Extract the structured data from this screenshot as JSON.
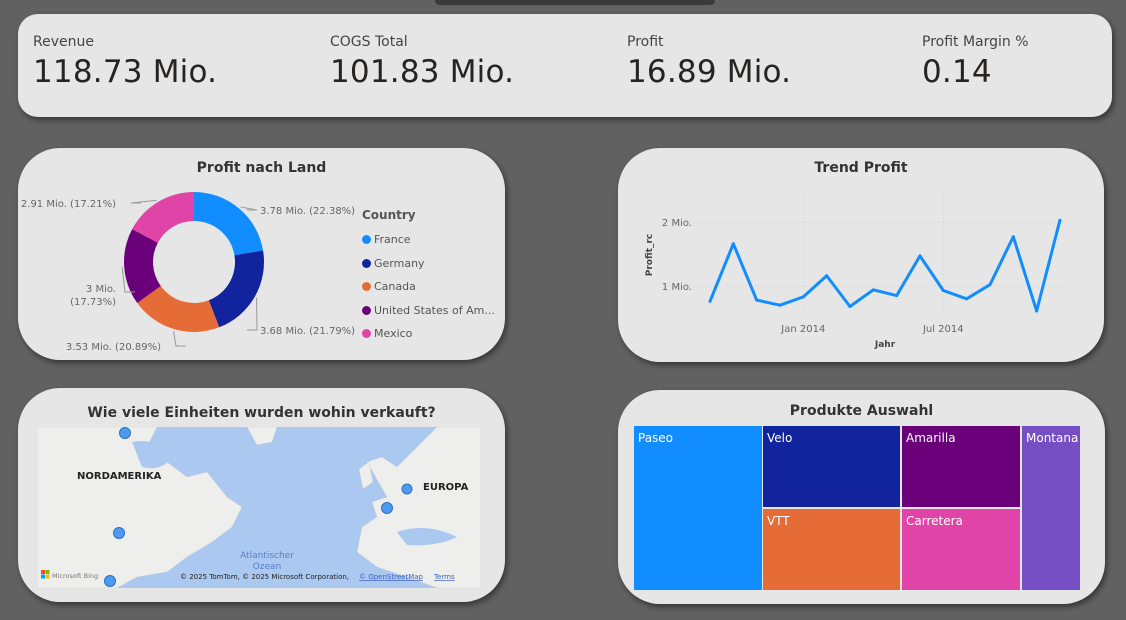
{
  "kpis": [
    {
      "label": "Revenue",
      "value": "118.73 Mio."
    },
    {
      "label": "COGS Total",
      "value": "101.83 Mio."
    },
    {
      "label": "Profit",
      "value": "16.89 Mio."
    },
    {
      "label": "Profit Margin %",
      "value": "0.14"
    }
  ],
  "chart_data": [
    {
      "type": "pie",
      "variant": "donut",
      "title": "Profit nach Land",
      "legend_title": "Country",
      "legend_position": "right",
      "categories": [
        "France",
        "Germany",
        "Canada",
        "United States of Am...",
        "Mexico"
      ],
      "values": [
        3.78,
        3.68,
        3.53,
        3.0,
        2.91
      ],
      "percent": [
        22.38,
        21.79,
        20.89,
        17.73,
        17.21
      ],
      "labels": [
        "3.78 Mio. (22.38%)",
        "3.68 Mio. (21.79%)",
        "3.53 Mio. (20.89%)",
        "3 Mio. (17.73%)",
        "2.91 Mio. (17.21%)"
      ],
      "colors": [
        "#118DFF",
        "#12239E",
        "#E66C37",
        "#6B007B",
        "#E044A7"
      ]
    },
    {
      "type": "line",
      "title": "Trend Profit",
      "xlabel": "Jahr",
      "ylabel": "Profit_rc",
      "x": [
        "2013-09",
        "2013-10",
        "2013-11",
        "2013-12",
        "2014-01",
        "2014-02",
        "2014-03",
        "2014-04",
        "2014-05",
        "2014-06",
        "2014-07",
        "2014-08",
        "2014-09",
        "2014-10",
        "2014-11",
        "2014-12"
      ],
      "values": [
        0.76,
        1.66,
        0.78,
        0.7,
        0.83,
        1.16,
        0.68,
        0.94,
        0.85,
        1.47,
        0.93,
        0.8,
        1.02,
        1.77,
        0.61,
        2.03
      ],
      "y_unit": "Mio.",
      "y_ticks": [
        "1 Mio.",
        "2 Mio."
      ],
      "x_ticks": [
        "Jan 2014",
        "Jul 2014"
      ],
      "ylim": [
        0,
        2.1
      ],
      "grid": true,
      "color": "#118DFF"
    },
    {
      "type": "treemap",
      "title": "Produkte Auswahl",
      "categories": [
        "Paseo",
        "Velo",
        "VTT",
        "Amarilla",
        "Carretera",
        "Montana"
      ],
      "colors": [
        "#118DFF",
        "#12239E",
        "#E66C37",
        "#6B007B",
        "#E044A7",
        "#744EC2"
      ]
    }
  ],
  "map": {
    "title": "Wie viele Einheiten wurden wohin verkauft?",
    "regions": [
      "NORDAMERIKA",
      "EUROPA"
    ],
    "ocean_label": "Atlantischer Ozean",
    "ocean_label_lines": [
      "Atlantischer",
      "Ozean"
    ],
    "brand": "Microsoft Bing",
    "copyright": "© 2025 TomTom, © 2025 Microsoft Corporation,",
    "osm_link": "© OpenStreetMap",
    "terms_link": "Terms",
    "markers": [
      "Canada",
      "United States of America",
      "Mexico",
      "France",
      "Germany"
    ]
  }
}
